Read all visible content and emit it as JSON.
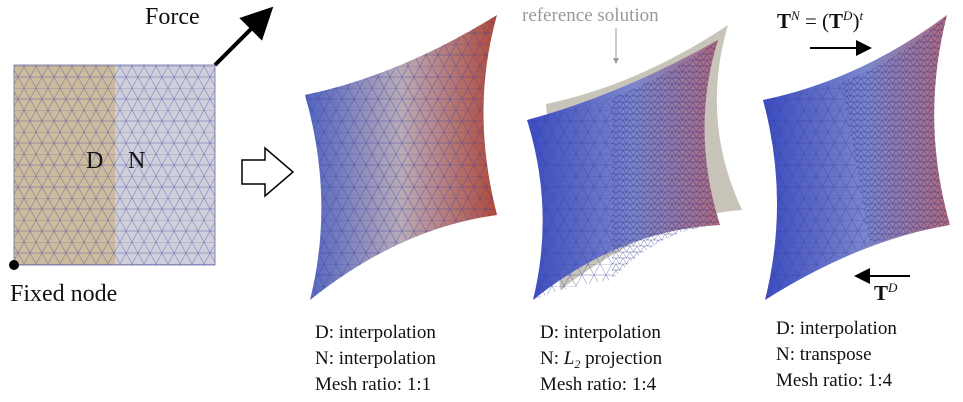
{
  "left_panel": {
    "force_label": "Force",
    "domain_d": "D",
    "domain_n": "N",
    "fixed_label": "Fixed node"
  },
  "reference_label": "reference solution",
  "formula": {
    "lhs": "T",
    "lhs_sup": "N",
    "eq": "= (",
    "rhs": "T",
    "rhs_sup": "D",
    "close": ")",
    "close_sup": "t"
  },
  "transfer_label": {
    "base": "T",
    "sup": "D"
  },
  "captions": [
    {
      "d": "D: interpolation",
      "n": {
        "text": "N: interpolation"
      },
      "ratio": "Mesh ratio: 1:1"
    },
    {
      "d": "D: interpolation",
      "n": {
        "prefix": "N:",
        "symbol": "L",
        "sub": "2",
        "suffix": "projection"
      },
      "ratio": "Mesh ratio: 1:4"
    },
    {
      "d": "D: interpolation",
      "n": {
        "text": "N: transpose"
      },
      "ratio": "Mesh ratio: 1:4"
    }
  ]
}
